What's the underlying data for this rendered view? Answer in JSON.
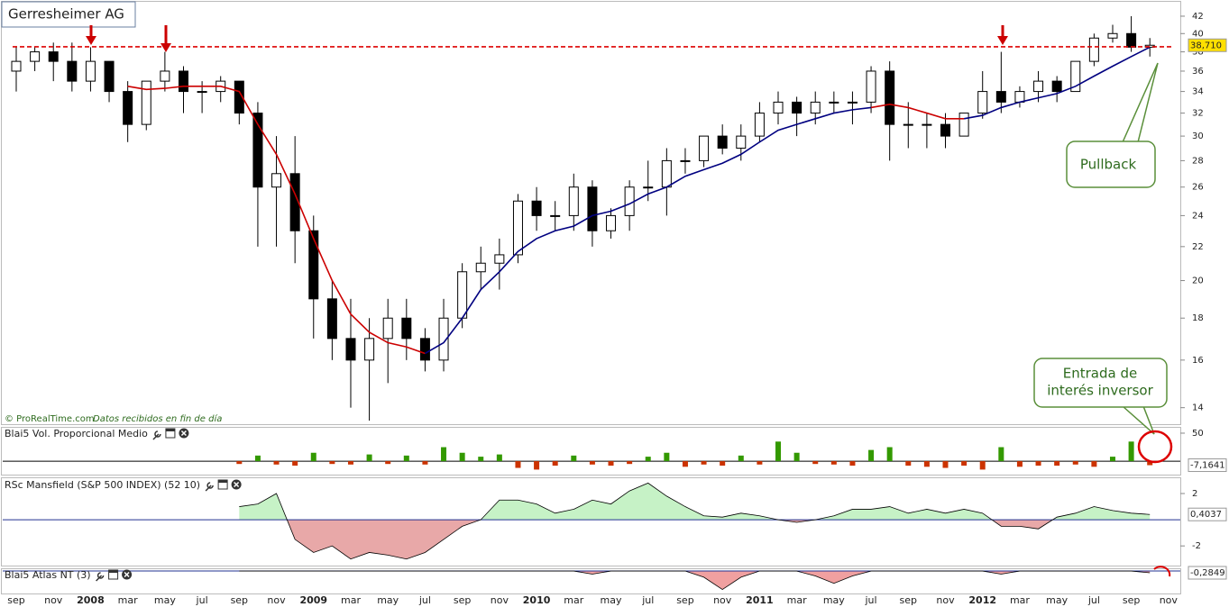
{
  "chart_data": [
    {
      "type": "candlestick",
      "title": "Gerresheimer AG",
      "log_scale": true,
      "categories": [
        "sep",
        null,
        "nov",
        null,
        "2008",
        null,
        "mar",
        null,
        "may",
        null,
        "jul",
        null,
        "sep",
        null,
        "nov",
        null,
        "2009",
        null,
        "mar",
        null,
        "may",
        null,
        "jul",
        null,
        "sep",
        null,
        "nov",
        null,
        "2010",
        null,
        "mar",
        null,
        "may",
        null,
        "jul",
        null,
        "sep",
        null,
        "nov",
        null,
        "2011",
        null,
        "mar",
        null,
        "may",
        null,
        "jul",
        null,
        "sep",
        null,
        "nov",
        null,
        "2012",
        null,
        "mar",
        null,
        "may",
        null,
        "jul",
        null,
        "sep",
        null,
        "nov"
      ],
      "open": [
        36,
        37,
        38,
        37,
        35,
        37,
        34,
        31,
        35,
        36,
        34,
        34,
        35,
        32,
        26,
        27,
        23,
        19,
        17,
        16,
        17,
        18,
        17,
        16,
        18,
        20.5,
        21,
        21.5,
        25,
        24,
        24,
        26,
        23,
        24,
        26,
        26,
        28,
        28,
        30,
        29,
        30,
        32,
        33,
        32,
        33,
        33,
        33,
        36,
        31,
        31,
        31,
        30,
        32,
        34,
        33,
        34,
        35,
        34,
        37,
        39.5,
        40,
        38.5,
        null
      ],
      "high": [
        38.5,
        38.5,
        39,
        39,
        38.5,
        37,
        35,
        35,
        38,
        36.5,
        35,
        35.5,
        35,
        33,
        30,
        30,
        24,
        20,
        19,
        18,
        19,
        19,
        17.5,
        19,
        21,
        22,
        22.5,
        25.5,
        26,
        25,
        27,
        26.5,
        24.5,
        26.5,
        28,
        29,
        29,
        30,
        31,
        31,
        33,
        34,
        33.5,
        34,
        34,
        34,
        36.5,
        37,
        33,
        32,
        32,
        32,
        36,
        38,
        34.5,
        36,
        35.5,
        37,
        40,
        41,
        42,
        39.5,
        null
      ],
      "low": [
        34,
        36,
        35,
        34,
        34,
        33,
        29.5,
        30.5,
        34,
        32,
        32,
        33,
        31,
        22,
        22,
        21,
        17,
        16,
        14,
        13.5,
        15,
        16,
        15.5,
        15.5,
        17.5,
        19.5,
        19.5,
        21,
        23,
        23,
        23,
        22,
        22.5,
        23,
        25,
        24,
        27,
        27.5,
        28.5,
        28,
        29.5,
        31,
        30,
        31,
        32,
        31,
        32,
        28,
        29,
        29,
        29,
        30,
        31.5,
        32,
        32.5,
        33,
        33,
        34,
        36.5,
        39,
        38,
        37.5,
        null
      ],
      "close": [
        37,
        38,
        37,
        35,
        37,
        34,
        31,
        35,
        36,
        34,
        34,
        35,
        32,
        26,
        27,
        23,
        19,
        17,
        16,
        17,
        18,
        17,
        16,
        18,
        20.5,
        21,
        21.5,
        25,
        24,
        24,
        26,
        23,
        24,
        26,
        26,
        28,
        28,
        30,
        29,
        30,
        32,
        33,
        32,
        33,
        33,
        33,
        36,
        31,
        31,
        31,
        30,
        32,
        34,
        33,
        34,
        35,
        34,
        37,
        39.5,
        40,
        38.5,
        38.71,
        null
      ],
      "value_labels": [
        null,
        null,
        null,
        null,
        null,
        null,
        null,
        null,
        null,
        null,
        null,
        null,
        null,
        null,
        null,
        null,
        null,
        null,
        null,
        null,
        null,
        null,
        null,
        null,
        null,
        null,
        null,
        null,
        null,
        null,
        null,
        null,
        null,
        null,
        null,
        null,
        null,
        null,
        null,
        null,
        null,
        null,
        null,
        null,
        null,
        null,
        null,
        null,
        null,
        null,
        null,
        null,
        null,
        null,
        null,
        null,
        null,
        null,
        null,
        null,
        null,
        "38,710",
        null
      ],
      "moving_averages": [
        {
          "color": "#cc0000",
          "values": [
            null,
            null,
            null,
            null,
            null,
            null,
            34.5,
            34.2,
            34.3,
            34.5,
            34.5,
            34.5,
            34,
            31,
            28.5,
            25.5,
            22.5,
            20,
            18.2,
            17.3,
            16.8,
            16.6,
            16.3,
            null,
            null,
            null,
            null,
            null,
            null,
            null,
            null,
            null,
            null,
            null,
            null,
            null,
            null,
            null,
            null,
            null,
            null,
            null,
            null,
            null,
            null,
            null,
            32.5,
            32.8,
            32.5,
            32,
            31.5,
            31.5,
            null,
            null,
            null,
            null,
            null,
            null,
            null,
            null,
            null,
            null,
            null
          ]
        },
        {
          "color": "#000080",
          "values": [
            null,
            null,
            null,
            null,
            null,
            null,
            null,
            null,
            null,
            null,
            null,
            null,
            null,
            null,
            null,
            null,
            null,
            null,
            null,
            null,
            null,
            null,
            16.3,
            16.8,
            18,
            19.5,
            20.5,
            21.7,
            22.5,
            23,
            23.3,
            24,
            24.3,
            24.8,
            25.5,
            26,
            26.8,
            27.3,
            27.8,
            28.5,
            29.5,
            30.5,
            31,
            31.5,
            32,
            32.3,
            32.5,
            null,
            null,
            null,
            null,
            31.5,
            31.8,
            32.5,
            33,
            33.4,
            33.8,
            34.5,
            35.5,
            36.5,
            37.5,
            38.5,
            null
          ]
        }
      ],
      "reference_line": 38.55,
      "reference_color": "#dd0000",
      "ylim": [
        13.4,
        43.4
      ],
      "yticks": [
        14,
        16,
        18,
        20,
        22,
        24,
        26,
        28,
        30,
        32,
        34,
        36,
        38,
        40,
        42
      ],
      "source": "© ProRealTime.com",
      "note": "Datos recibidos en fin de día",
      "annotations": [
        [
          "Pullback"
        ],
        [
          "Entrada de",
          "interés inversor"
        ]
      ]
    },
    {
      "type": "bar",
      "title": "Blai5 Vol. Proporcional Medio",
      "positive_color": "#339900",
      "negative_color": "#cc3300",
      "values": [
        null,
        null,
        null,
        null,
        null,
        null,
        null,
        null,
        null,
        null,
        null,
        null,
        -5,
        10,
        -6,
        -8,
        15,
        -5,
        -6,
        12,
        -5,
        10,
        -6,
        25,
        15,
        8,
        12,
        -12,
        -15,
        -8,
        10,
        -6,
        -8,
        -5,
        8,
        15,
        -10,
        -6,
        -8,
        10,
        -6,
        35,
        15,
        -5,
        -6,
        -8,
        20,
        25,
        -8,
        -10,
        -12,
        -8,
        -15,
        25,
        -10,
        -8,
        -8,
        -6,
        -10,
        8,
        35,
        -7.1641,
        null
      ],
      "value_labels": [
        null,
        null,
        null,
        null,
        null,
        null,
        null,
        null,
        null,
        null,
        null,
        null,
        null,
        null,
        null,
        null,
        null,
        null,
        null,
        null,
        null,
        null,
        null,
        null,
        null,
        null,
        null,
        null,
        null,
        null,
        null,
        null,
        null,
        null,
        null,
        null,
        null,
        null,
        null,
        null,
        null,
        null,
        null,
        null,
        null,
        null,
        null,
        null,
        null,
        null,
        null,
        null,
        null,
        null,
        null,
        null,
        null,
        null,
        null,
        null,
        null,
        "-7,1641",
        null
      ],
      "ylim": [
        -24,
        58
      ],
      "yticks": [
        50
      ]
    },
    {
      "type": "area",
      "title": "RSc Mansfield (S&P 500 INDEX) (52 10)",
      "positive_color": "#c6f2c6",
      "negative_color": "#e8a8a8",
      "values": [
        null,
        null,
        null,
        null,
        null,
        null,
        null,
        null,
        null,
        null,
        null,
        null,
        1,
        1.2,
        2,
        -1.5,
        -2.5,
        -2,
        -3,
        -2.5,
        -2.7,
        -3,
        -2.5,
        -1.5,
        -0.5,
        0,
        1.5,
        1.5,
        1.2,
        0.5,
        0.8,
        1.5,
        1.2,
        2.2,
        2.8,
        1.8,
        1,
        0.3,
        0.2,
        0.5,
        0.3,
        0,
        -0.2,
        0,
        0.3,
        0.8,
        0.8,
        1,
        0.5,
        0.8,
        0.5,
        0.8,
        0.5,
        -0.5,
        -0.5,
        -0.7,
        0.2,
        0.5,
        1,
        0.7,
        0.5,
        0.4037,
        null
      ],
      "value_labels": [
        null,
        null,
        null,
        null,
        null,
        null,
        null,
        null,
        null,
        null,
        null,
        null,
        null,
        null,
        null,
        null,
        null,
        null,
        null,
        null,
        null,
        null,
        null,
        null,
        null,
        null,
        null,
        null,
        null,
        null,
        null,
        null,
        null,
        null,
        null,
        null,
        null,
        null,
        null,
        null,
        null,
        null,
        null,
        null,
        null,
        null,
        null,
        null,
        null,
        null,
        null,
        null,
        null,
        null,
        null,
        null,
        null,
        null,
        null,
        null,
        null,
        "0,4037",
        null
      ],
      "ylim": [
        -3.5,
        3.1
      ],
      "yticks": [
        -2,
        2
      ]
    },
    {
      "type": "area",
      "title": "Blai5 Atlas NT (3)",
      "positive_color": "#c6f2c6",
      "negative_color": "#f0a0a0",
      "values": [
        null,
        null,
        null,
        null,
        null,
        null,
        null,
        null,
        null,
        null,
        null,
        null,
        0,
        0,
        0,
        0,
        0,
        0,
        0,
        0,
        0,
        0,
        0,
        0,
        0,
        0,
        0,
        0,
        0,
        0,
        0,
        -0.5,
        0,
        0,
        0,
        0,
        0,
        -1,
        -3,
        -1,
        0,
        0,
        0,
        -0.8,
        -2,
        -0.8,
        0,
        0,
        0,
        0,
        0,
        0,
        0,
        -0.5,
        0,
        0,
        0,
        0,
        0,
        0,
        0,
        -0.2849,
        null
      ],
      "value_labels": [
        null,
        null,
        null,
        null,
        null,
        null,
        null,
        null,
        null,
        null,
        null,
        null,
        null,
        null,
        null,
        null,
        null,
        null,
        null,
        null,
        null,
        null,
        null,
        null,
        null,
        null,
        null,
        null,
        null,
        null,
        null,
        null,
        null,
        null,
        null,
        null,
        null,
        null,
        null,
        null,
        null,
        null,
        null,
        null,
        null,
        null,
        null,
        null,
        null,
        null,
        null,
        null,
        null,
        null,
        null,
        null,
        null,
        null,
        null,
        null,
        null,
        "-0,2849",
        null
      ],
      "ylim": [
        -3.5,
        0.3
      ],
      "yticks": []
    }
  ]
}
